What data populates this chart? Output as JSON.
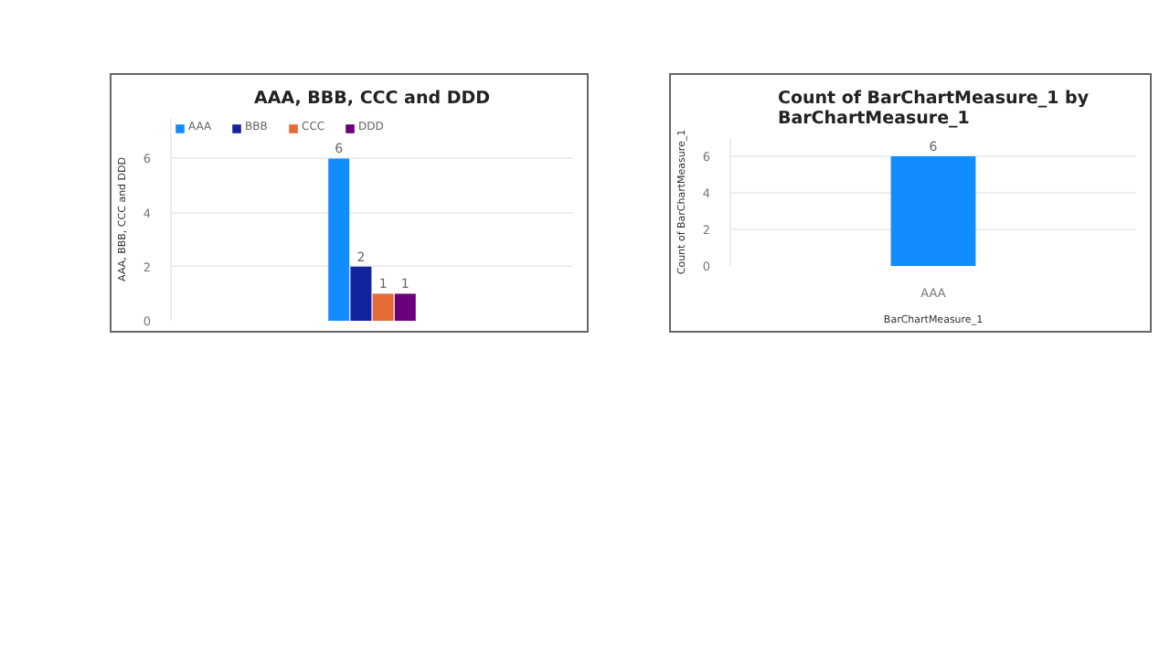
{
  "chart_data": [
    {
      "type": "bar",
      "title": "AAA, BBB, CCC and DDD",
      "ylabel": "AAA, BBB, CCC and DDD",
      "categories": [
        null
      ],
      "series": [
        {
          "name": "AAA",
          "color": "#118dff",
          "values": [
            6
          ]
        },
        {
          "name": "BBB",
          "color": "#12239e",
          "values": [
            2
          ]
        },
        {
          "name": "CCC",
          "color": "#e66c37",
          "values": [
            1
          ]
        },
        {
          "name": "DDD",
          "color": "#6b007b",
          "values": [
            1
          ]
        }
      ],
      "ylim": [
        0,
        7.5
      ],
      "yticks": [
        0,
        2,
        4,
        6
      ],
      "grid": "y",
      "legend": "top left",
      "data_labels": true
    },
    {
      "type": "bar",
      "title": "Count of BarChartMeasure_1 by BarChartMeasure_1",
      "xlabel": "BarChartMeasure_1",
      "ylabel": "Count of BarChartMeasure_1",
      "categories": [
        "AAA"
      ],
      "series": [
        {
          "color": "#118dff",
          "values": [
            6
          ]
        }
      ],
      "ylim": [
        0,
        7
      ],
      "yticks": [
        0,
        2,
        4,
        6
      ],
      "grid": "y",
      "data_labels": true
    }
  ]
}
